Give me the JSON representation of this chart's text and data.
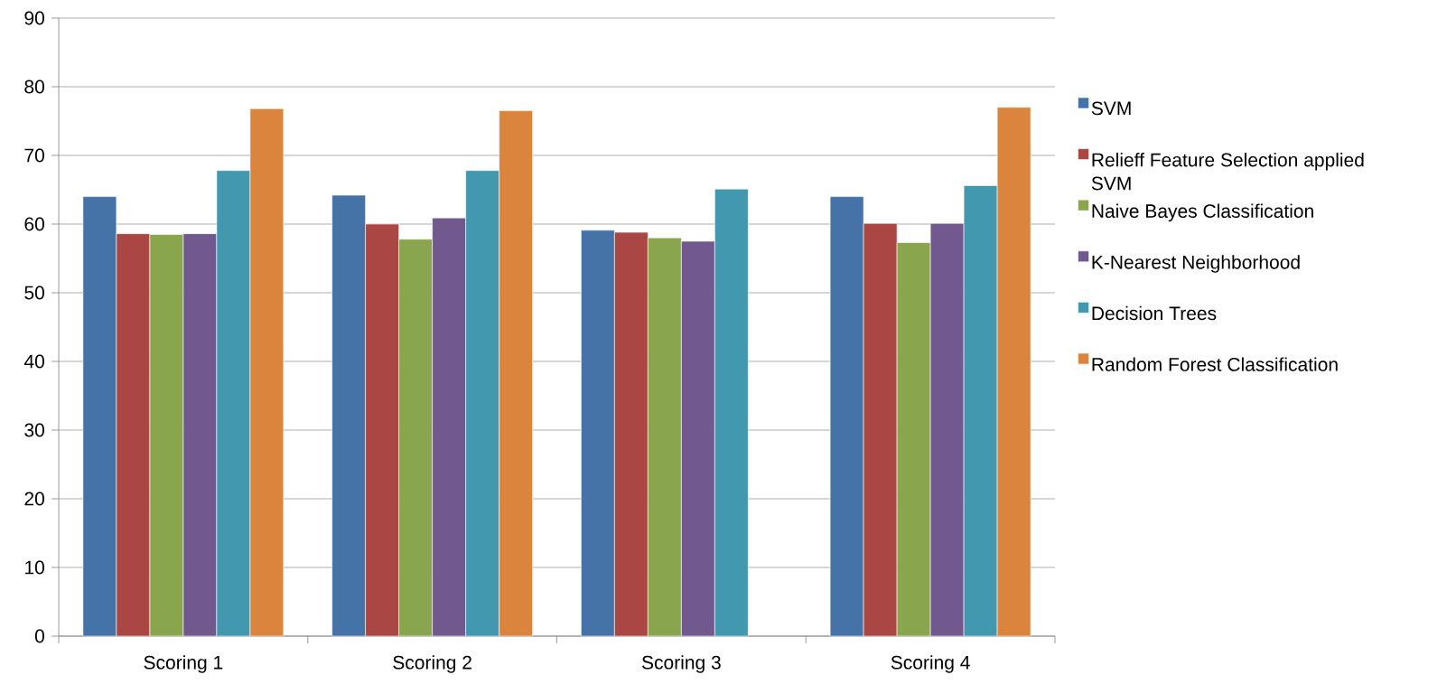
{
  "chart_data": {
    "type": "bar",
    "categories": [
      "Scoring 1",
      "Scoring 2",
      "Scoring 3",
      "Scoring 4"
    ],
    "series": [
      {
        "name": "SVM",
        "color": "#4572a7",
        "values": [
          64,
          64.2,
          59.1,
          64
        ]
      },
      {
        "name": "Relieff Feature Selection applied SVM",
        "color": "#aa4643",
        "values": [
          58.6,
          60,
          58.8,
          60.1
        ]
      },
      {
        "name": "Naive Bayes Classification",
        "color": "#89a54e",
        "values": [
          58.5,
          57.8,
          58,
          57.3
        ]
      },
      {
        "name": "K-Nearest Neighborhood",
        "color": "#71588f",
        "values": [
          58.6,
          60.9,
          57.5,
          60.1
        ]
      },
      {
        "name": "Decision Trees",
        "color": "#4198af",
        "values": [
          67.8,
          67.8,
          65.1,
          65.6
        ]
      },
      {
        "name": "Random Forest Classification",
        "color": "#db843d",
        "values": [
          76.8,
          76.5,
          null,
          77
        ]
      }
    ],
    "ylim": [
      0,
      90
    ],
    "yticks": [
      0,
      10,
      20,
      30,
      40,
      50,
      60,
      70,
      80,
      90
    ],
    "grid": "y",
    "legend": "right"
  }
}
